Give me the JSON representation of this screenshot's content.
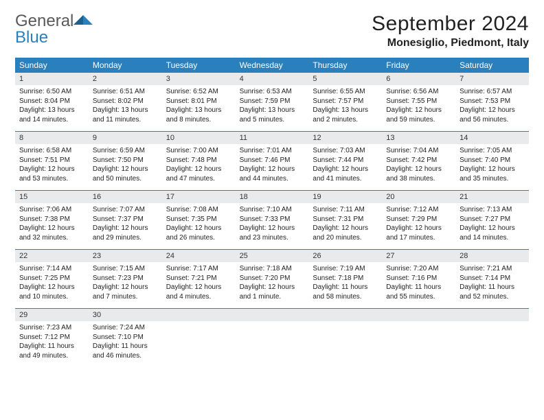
{
  "brand": {
    "name1": "General",
    "name2": "Blue"
  },
  "title": "September 2024",
  "location": "Monesiglio, Piedmont, Italy",
  "colors": {
    "accent": "#2a7fbd",
    "header_bg": "#2a7fbd",
    "daynum_bg": "#e9eaeb",
    "text": "#222222",
    "logo_gray": "#58595b"
  },
  "typography": {
    "title_size_pt": 22,
    "location_size_pt": 12,
    "dow_size_pt": 9,
    "body_size_pt": 7.5
  },
  "calendar": {
    "type": "table",
    "columns": [
      "Sunday",
      "Monday",
      "Tuesday",
      "Wednesday",
      "Thursday",
      "Friday",
      "Saturday"
    ],
    "weeks": [
      [
        {
          "n": "1",
          "sunrise": "Sunrise: 6:50 AM",
          "sunset": "Sunset: 8:04 PM",
          "daylight": "Daylight: 13 hours and 14 minutes."
        },
        {
          "n": "2",
          "sunrise": "Sunrise: 6:51 AM",
          "sunset": "Sunset: 8:02 PM",
          "daylight": "Daylight: 13 hours and 11 minutes."
        },
        {
          "n": "3",
          "sunrise": "Sunrise: 6:52 AM",
          "sunset": "Sunset: 8:01 PM",
          "daylight": "Daylight: 13 hours and 8 minutes."
        },
        {
          "n": "4",
          "sunrise": "Sunrise: 6:53 AM",
          "sunset": "Sunset: 7:59 PM",
          "daylight": "Daylight: 13 hours and 5 minutes."
        },
        {
          "n": "5",
          "sunrise": "Sunrise: 6:55 AM",
          "sunset": "Sunset: 7:57 PM",
          "daylight": "Daylight: 13 hours and 2 minutes."
        },
        {
          "n": "6",
          "sunrise": "Sunrise: 6:56 AM",
          "sunset": "Sunset: 7:55 PM",
          "daylight": "Daylight: 12 hours and 59 minutes."
        },
        {
          "n": "7",
          "sunrise": "Sunrise: 6:57 AM",
          "sunset": "Sunset: 7:53 PM",
          "daylight": "Daylight: 12 hours and 56 minutes."
        }
      ],
      [
        {
          "n": "8",
          "sunrise": "Sunrise: 6:58 AM",
          "sunset": "Sunset: 7:51 PM",
          "daylight": "Daylight: 12 hours and 53 minutes."
        },
        {
          "n": "9",
          "sunrise": "Sunrise: 6:59 AM",
          "sunset": "Sunset: 7:50 PM",
          "daylight": "Daylight: 12 hours and 50 minutes."
        },
        {
          "n": "10",
          "sunrise": "Sunrise: 7:00 AM",
          "sunset": "Sunset: 7:48 PM",
          "daylight": "Daylight: 12 hours and 47 minutes."
        },
        {
          "n": "11",
          "sunrise": "Sunrise: 7:01 AM",
          "sunset": "Sunset: 7:46 PM",
          "daylight": "Daylight: 12 hours and 44 minutes."
        },
        {
          "n": "12",
          "sunrise": "Sunrise: 7:03 AM",
          "sunset": "Sunset: 7:44 PM",
          "daylight": "Daylight: 12 hours and 41 minutes."
        },
        {
          "n": "13",
          "sunrise": "Sunrise: 7:04 AM",
          "sunset": "Sunset: 7:42 PM",
          "daylight": "Daylight: 12 hours and 38 minutes."
        },
        {
          "n": "14",
          "sunrise": "Sunrise: 7:05 AM",
          "sunset": "Sunset: 7:40 PM",
          "daylight": "Daylight: 12 hours and 35 minutes."
        }
      ],
      [
        {
          "n": "15",
          "sunrise": "Sunrise: 7:06 AM",
          "sunset": "Sunset: 7:38 PM",
          "daylight": "Daylight: 12 hours and 32 minutes."
        },
        {
          "n": "16",
          "sunrise": "Sunrise: 7:07 AM",
          "sunset": "Sunset: 7:37 PM",
          "daylight": "Daylight: 12 hours and 29 minutes."
        },
        {
          "n": "17",
          "sunrise": "Sunrise: 7:08 AM",
          "sunset": "Sunset: 7:35 PM",
          "daylight": "Daylight: 12 hours and 26 minutes."
        },
        {
          "n": "18",
          "sunrise": "Sunrise: 7:10 AM",
          "sunset": "Sunset: 7:33 PM",
          "daylight": "Daylight: 12 hours and 23 minutes."
        },
        {
          "n": "19",
          "sunrise": "Sunrise: 7:11 AM",
          "sunset": "Sunset: 7:31 PM",
          "daylight": "Daylight: 12 hours and 20 minutes."
        },
        {
          "n": "20",
          "sunrise": "Sunrise: 7:12 AM",
          "sunset": "Sunset: 7:29 PM",
          "daylight": "Daylight: 12 hours and 17 minutes."
        },
        {
          "n": "21",
          "sunrise": "Sunrise: 7:13 AM",
          "sunset": "Sunset: 7:27 PM",
          "daylight": "Daylight: 12 hours and 14 minutes."
        }
      ],
      [
        {
          "n": "22",
          "sunrise": "Sunrise: 7:14 AM",
          "sunset": "Sunset: 7:25 PM",
          "daylight": "Daylight: 12 hours and 10 minutes."
        },
        {
          "n": "23",
          "sunrise": "Sunrise: 7:15 AM",
          "sunset": "Sunset: 7:23 PM",
          "daylight": "Daylight: 12 hours and 7 minutes."
        },
        {
          "n": "24",
          "sunrise": "Sunrise: 7:17 AM",
          "sunset": "Sunset: 7:21 PM",
          "daylight": "Daylight: 12 hours and 4 minutes."
        },
        {
          "n": "25",
          "sunrise": "Sunrise: 7:18 AM",
          "sunset": "Sunset: 7:20 PM",
          "daylight": "Daylight: 12 hours and 1 minute."
        },
        {
          "n": "26",
          "sunrise": "Sunrise: 7:19 AM",
          "sunset": "Sunset: 7:18 PM",
          "daylight": "Daylight: 11 hours and 58 minutes."
        },
        {
          "n": "27",
          "sunrise": "Sunrise: 7:20 AM",
          "sunset": "Sunset: 7:16 PM",
          "daylight": "Daylight: 11 hours and 55 minutes."
        },
        {
          "n": "28",
          "sunrise": "Sunrise: 7:21 AM",
          "sunset": "Sunset: 7:14 PM",
          "daylight": "Daylight: 11 hours and 52 minutes."
        }
      ],
      [
        {
          "n": "29",
          "sunrise": "Sunrise: 7:23 AM",
          "sunset": "Sunset: 7:12 PM",
          "daylight": "Daylight: 11 hours and 49 minutes."
        },
        {
          "n": "30",
          "sunrise": "Sunrise: 7:24 AM",
          "sunset": "Sunset: 7:10 PM",
          "daylight": "Daylight: 11 hours and 46 minutes."
        },
        null,
        null,
        null,
        null,
        null
      ]
    ]
  }
}
